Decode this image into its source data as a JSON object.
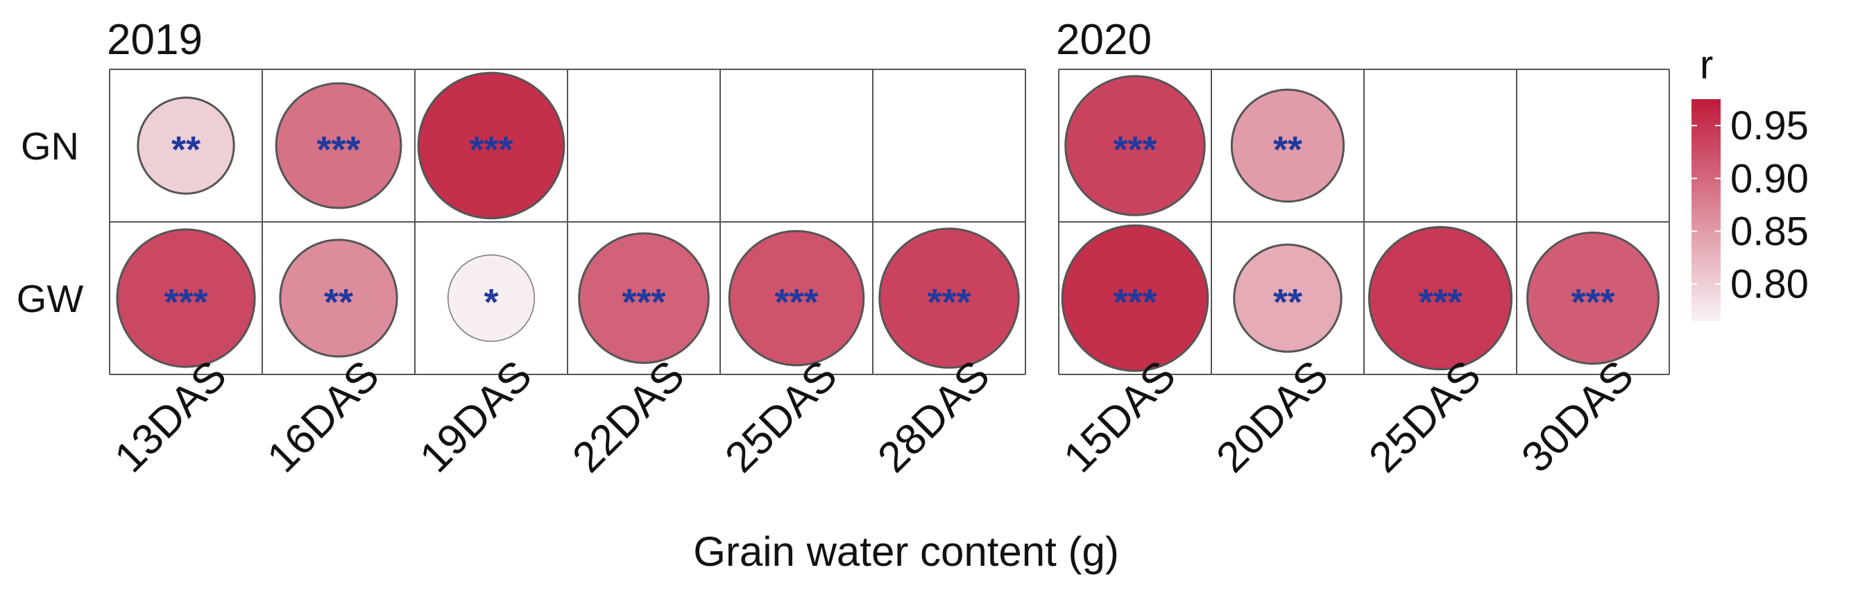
{
  "chart_data": {
    "type": "heatmap",
    "xlabel": "Grain water content (g)",
    "rows": [
      "GN",
      "GW"
    ],
    "legend": {
      "title": "r",
      "ticks": [
        "0.95",
        "0.90",
        "0.85",
        "0.80"
      ],
      "tick_values": [
        0.95,
        0.9,
        0.85,
        0.8
      ],
      "range": [
        0.765,
        0.975
      ],
      "color_low": "#f8f3f5",
      "color_high": "#bf1a3a",
      "placement": "right"
    },
    "significance_color": "#1f3a9e",
    "panels": [
      {
        "title": "2019",
        "columns": [
          "13DAS",
          "16DAS",
          "19DAS",
          "22DAS",
          "25DAS",
          "28DAS"
        ],
        "cells": [
          [
            {
              "r": 0.8,
              "sig": "**"
            },
            {
              "r": 0.89,
              "sig": "***"
            },
            {
              "r": 0.955,
              "sig": "***"
            },
            null,
            null,
            null
          ],
          [
            {
              "r": 0.93,
              "sig": "***"
            },
            {
              "r": 0.865,
              "sig": "**"
            },
            {
              "r": 0.77,
              "sig": "*"
            },
            {
              "r": 0.905,
              "sig": "***"
            },
            {
              "r": 0.92,
              "sig": "***"
            },
            {
              "r": 0.935,
              "sig": "***"
            }
          ]
        ]
      },
      {
        "title": "2020",
        "columns": [
          "15DAS",
          "20DAS",
          "25DAS",
          "30DAS"
        ],
        "cells": [
          [
            {
              "r": 0.935,
              "sig": "***"
            },
            {
              "r": 0.85,
              "sig": "**"
            },
            null,
            null
          ],
          [
            {
              "r": 0.955,
              "sig": "***"
            },
            {
              "r": 0.835,
              "sig": "**"
            },
            {
              "r": 0.945,
              "sig": "***"
            },
            {
              "r": 0.91,
              "sig": "***"
            }
          ]
        ]
      }
    ]
  }
}
